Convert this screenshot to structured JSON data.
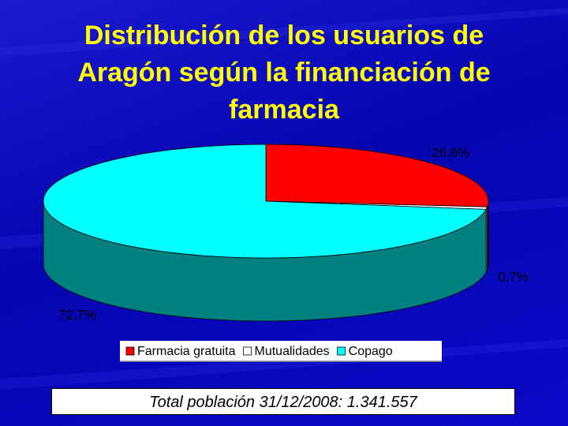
{
  "chart_data": {
    "type": "pie",
    "title": "Distribución de los usuarios de Aragón según la financiación de farmacia",
    "categories": [
      "Farmacia gratuita",
      "Mutualidades",
      "Copago"
    ],
    "values": [
      26.6,
      0.7,
      72.7
    ],
    "value_labels": [
      "26,6%",
      "0,7%",
      "72,7%"
    ],
    "colors": [
      "#ff0000",
      "#ffffff",
      "#00ffff"
    ],
    "legend": "bottom",
    "footer": "Total población 31/12/2008: 1.341.557"
  }
}
